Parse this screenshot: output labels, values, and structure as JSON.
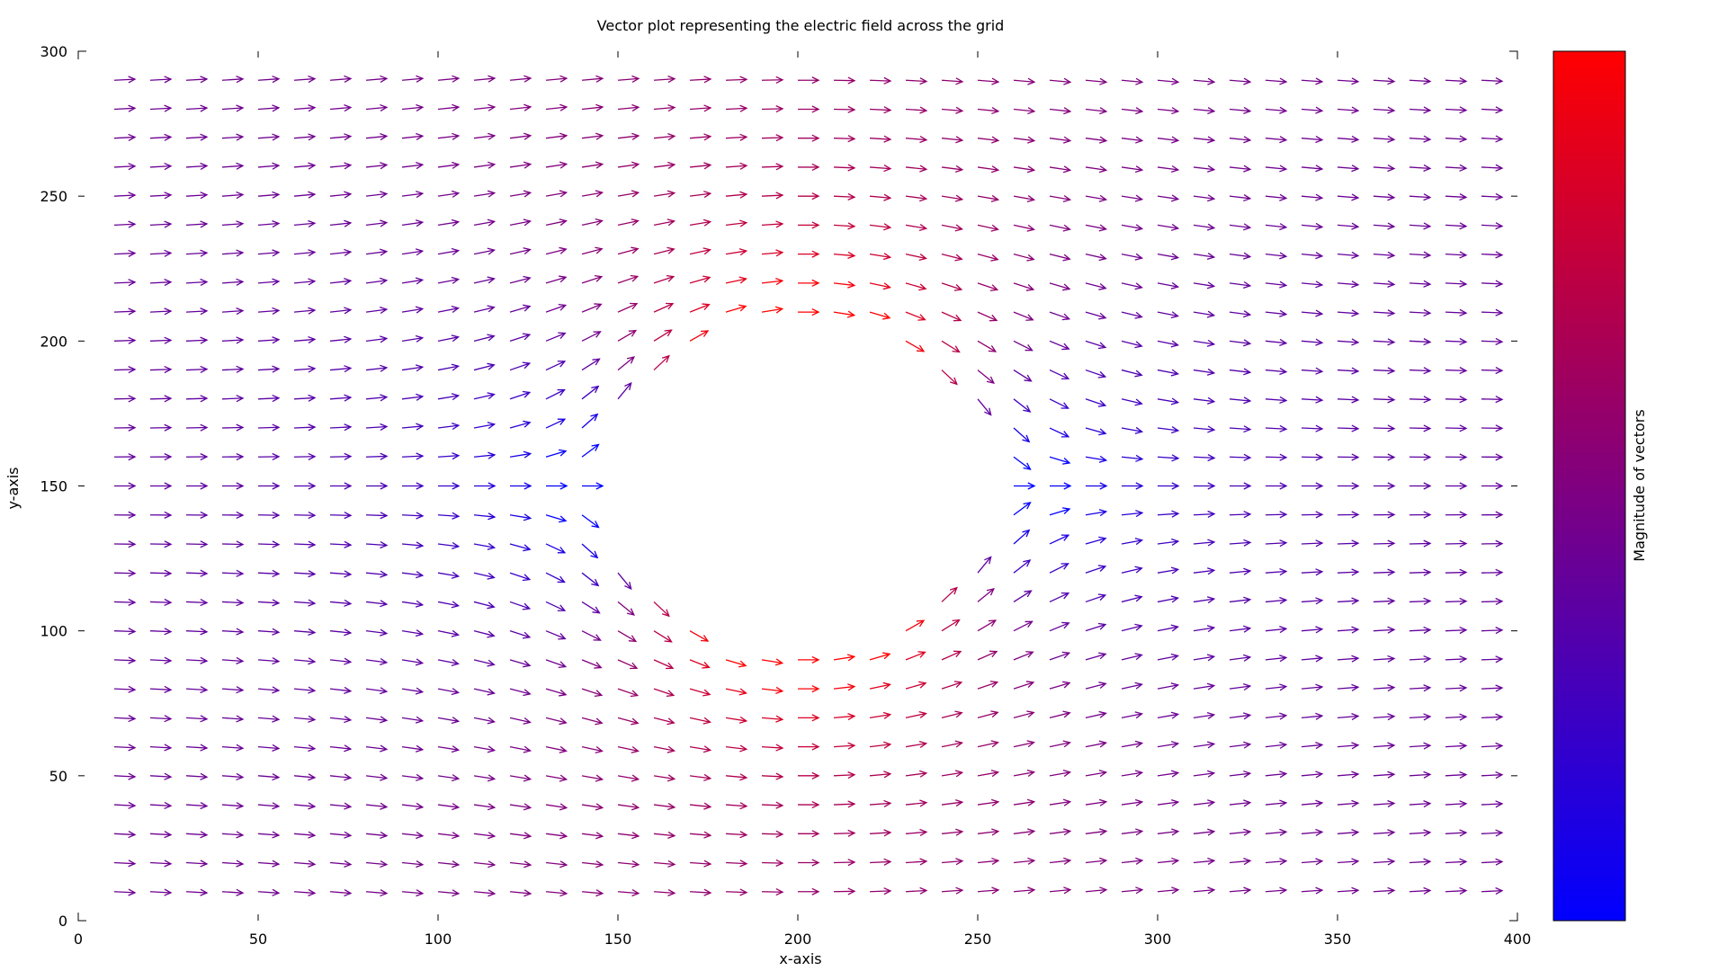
{
  "chart_data": {
    "type": "vector_field",
    "title": "Vector plot representing the electric field across the grid",
    "xlabel": "x-axis",
    "ylabel": "y-axis",
    "colorbar_label": "Magnitude of vectors",
    "xlim": [
      0,
      400
    ],
    "ylim": [
      0,
      300
    ],
    "xticks": [
      0,
      50,
      100,
      150,
      200,
      250,
      300,
      350,
      400
    ],
    "yticks": [
      0,
      50,
      100,
      150,
      200,
      250,
      300
    ],
    "grid": false,
    "legend": "none",
    "colormap": {
      "low": "#0000ff",
      "high": "#ff0000"
    },
    "field": {
      "description_of_model": "uniform field in +x direction perturbed by an elliptical obstacle",
      "grid_x": {
        "start": 10,
        "stop": 390,
        "step": 10
      },
      "grid_y": {
        "start": 10,
        "stop": 290,
        "step": 10
      },
      "uniform_field": [
        1,
        0
      ],
      "obstacle": {
        "center": [
          200,
          150
        ],
        "semi_axis_x": 52,
        "semi_axis_y": 55
      }
    }
  }
}
